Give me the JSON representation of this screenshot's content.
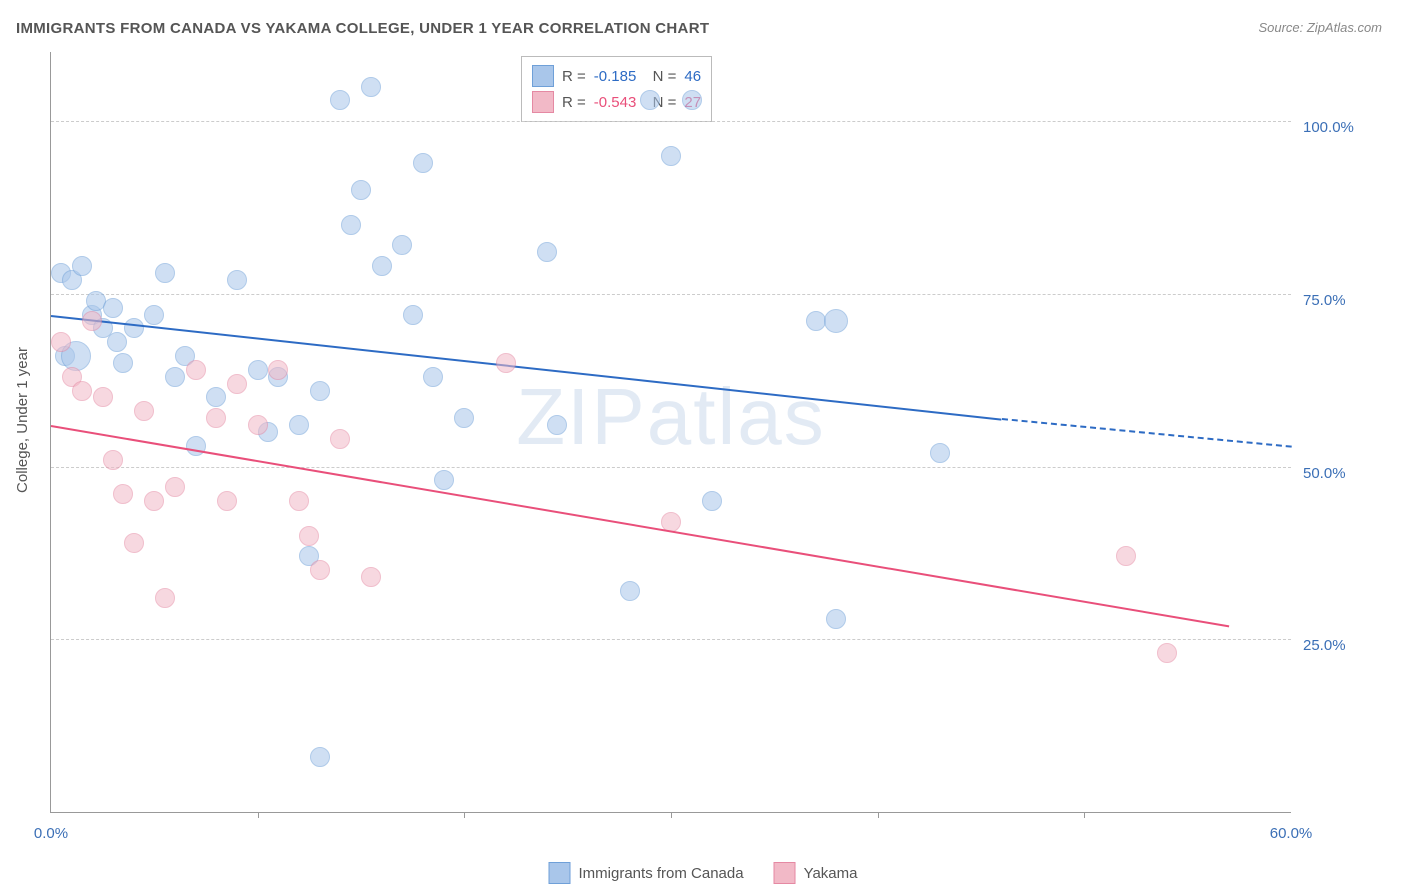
{
  "title": "IMMIGRANTS FROM CANADA VS YAKAMA COLLEGE, UNDER 1 YEAR CORRELATION CHART",
  "source": "Source: ZipAtlas.com",
  "watermark": "ZIPatlas",
  "ylabel": "College, Under 1 year",
  "chart": {
    "type": "scatter",
    "background_color": "#ffffff",
    "grid_color": "#cccccc",
    "axis_color": "#999999",
    "xlim": [
      0,
      60
    ],
    "ylim": [
      0,
      110
    ],
    "xtick_step": 10,
    "ytick_step": 25,
    "ytick_start": 25,
    "ytick_end": 100,
    "xtick_labels": {
      "0": "0.0%",
      "60": "60.0%"
    },
    "tick_color": "#3b6fb6",
    "marker_radius": 9,
    "marker_opacity": 0.55
  },
  "series": [
    {
      "name": "Immigrants from Canada",
      "color_fill": "#a9c6ea",
      "color_stroke": "#6fa0d8",
      "color_line": "#2d6bc4",
      "R": "-0.185",
      "N": "46",
      "trend": {
        "x1": 0,
        "y1": 72,
        "x2": 46,
        "y2": 57,
        "dash_from": 46,
        "dash_to": 60,
        "dash_y2": 53
      },
      "points": [
        [
          0.5,
          78
        ],
        [
          0.7,
          66
        ],
        [
          1,
          77
        ],
        [
          1.5,
          79
        ],
        [
          2,
          72
        ],
        [
          2.2,
          74
        ],
        [
          2.5,
          70
        ],
        [
          3,
          73
        ],
        [
          3.2,
          68
        ],
        [
          3.5,
          65
        ],
        [
          4,
          70
        ],
        [
          5,
          72
        ],
        [
          5.5,
          78
        ],
        [
          6,
          63
        ],
        [
          6.5,
          66
        ],
        [
          7,
          53
        ],
        [
          8,
          60
        ],
        [
          9,
          77
        ],
        [
          10,
          64
        ],
        [
          10.5,
          55
        ],
        [
          11,
          63
        ],
        [
          12,
          56
        ],
        [
          12.5,
          37
        ],
        [
          13,
          61
        ],
        [
          13,
          8
        ],
        [
          14,
          103
        ],
        [
          14.5,
          85
        ],
        [
          15,
          90
        ],
        [
          15.5,
          105
        ],
        [
          16,
          79
        ],
        [
          17,
          82
        ],
        [
          17.5,
          72
        ],
        [
          18,
          94
        ],
        [
          18.5,
          63
        ],
        [
          19,
          48
        ],
        [
          20,
          57
        ],
        [
          24,
          81
        ],
        [
          24.5,
          56
        ],
        [
          28,
          32
        ],
        [
          29,
          103
        ],
        [
          30,
          95
        ],
        [
          31,
          103
        ],
        [
          32,
          45
        ],
        [
          37,
          71
        ],
        [
          38,
          28
        ],
        [
          43,
          52
        ]
      ],
      "special_points": [
        [
          1.2,
          66,
          14
        ],
        [
          38,
          71,
          11
        ]
      ]
    },
    {
      "name": "Yakama",
      "color_fill": "#f2b9c7",
      "color_stroke": "#e589a3",
      "color_line": "#e94f7a",
      "R": "-0.543",
      "N": "27",
      "trend": {
        "x1": 0,
        "y1": 56,
        "x2": 57,
        "y2": 27
      },
      "points": [
        [
          0.5,
          68
        ],
        [
          1,
          63
        ],
        [
          1.5,
          61
        ],
        [
          2,
          71
        ],
        [
          2.5,
          60
        ],
        [
          3,
          51
        ],
        [
          3.5,
          46
        ],
        [
          4,
          39
        ],
        [
          4.5,
          58
        ],
        [
          5,
          45
        ],
        [
          5.5,
          31
        ],
        [
          6,
          47
        ],
        [
          7,
          64
        ],
        [
          8,
          57
        ],
        [
          8.5,
          45
        ],
        [
          9,
          62
        ],
        [
          10,
          56
        ],
        [
          11,
          64
        ],
        [
          12,
          45
        ],
        [
          12.5,
          40
        ],
        [
          13,
          35
        ],
        [
          14,
          54
        ],
        [
          15.5,
          34
        ],
        [
          22,
          65
        ],
        [
          30,
          42
        ],
        [
          52,
          37
        ],
        [
          54,
          23
        ]
      ]
    }
  ],
  "bottom_legend": [
    {
      "label": "Immigrants from Canada",
      "fill": "#a9c6ea",
      "stroke": "#6fa0d8"
    },
    {
      "label": "Yakama",
      "fill": "#f2b9c7",
      "stroke": "#e589a3"
    }
  ]
}
